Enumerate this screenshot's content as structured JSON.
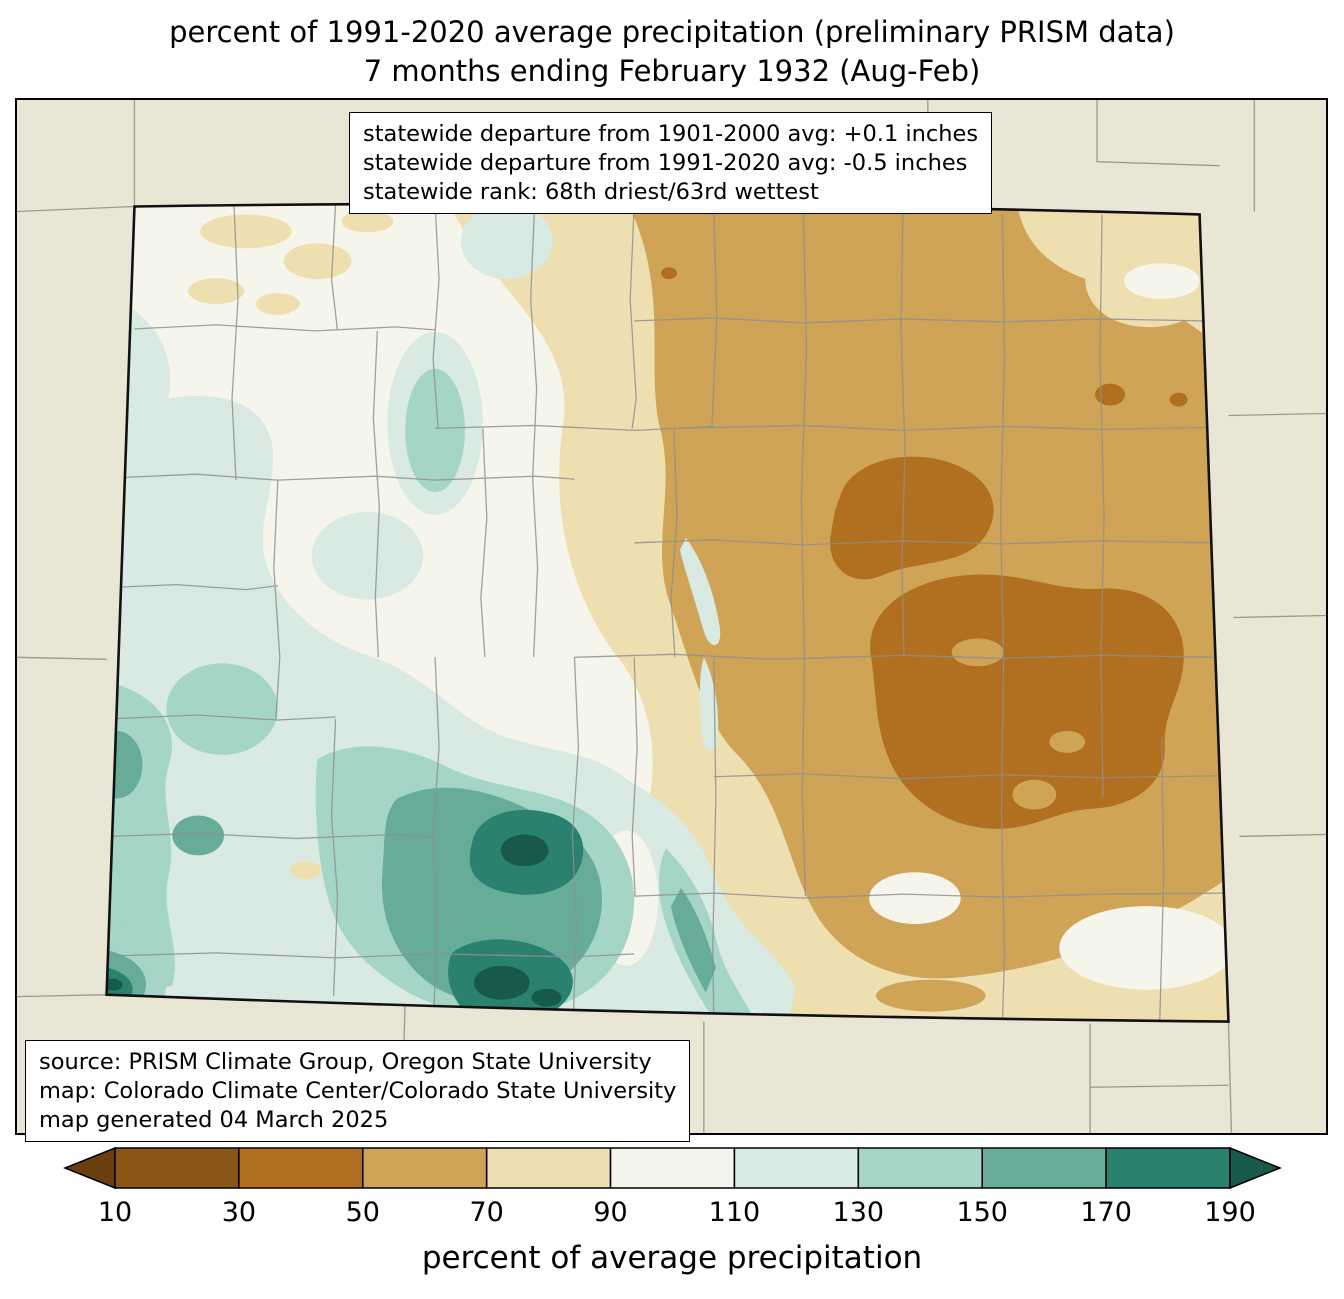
{
  "title": {
    "line1": "percent of 1991-2020 average precipitation (preliminary PRISM data)",
    "line2": "7 months ending February 1932 (Aug-Feb)"
  },
  "stats_box": {
    "line1": "statewide departure from 1901-2000 avg: +0.1 inches",
    "line2": "statewide departure from 1991-2020 avg: -0.5 inches",
    "line3": "statewide rank: 68th driest/63rd wettest"
  },
  "source_box": {
    "line1": "source: PRISM Climate Group, Oregon State University",
    "line2": "map: Colorado Climate Center/Colorado State University",
    "line3": "map generated 04 March 2025"
  },
  "colorbar": {
    "label": "percent of average precipitation",
    "ticks": [
      "10",
      "30",
      "50",
      "70",
      "90",
      "110",
      "130",
      "150",
      "170",
      "190"
    ],
    "colors": [
      "#6a3f10",
      "#8a5615",
      "#b0701f",
      "#d0a457",
      "#eedfb0",
      "#f6f5ec",
      "#d8eae2",
      "#a5d5c7",
      "#66ac99",
      "#2b8170",
      "#175a4c"
    ]
  },
  "palette": {
    "outside": "#e9e6d6",
    "p10_30": "#8a5615",
    "p30_50": "#b0701f",
    "p50_70": "#d0a457",
    "p70_90": "#eedfb0",
    "p90_110": "#f6f5ec",
    "p110_130": "#d8eae2",
    "p130_150": "#a5d5c7",
    "p150_170": "#66ac99",
    "p170_190": "#2b8170",
    "gt190": "#175a4c",
    "county_line": "#8f8f8f",
    "state_border": "#111111"
  }
}
